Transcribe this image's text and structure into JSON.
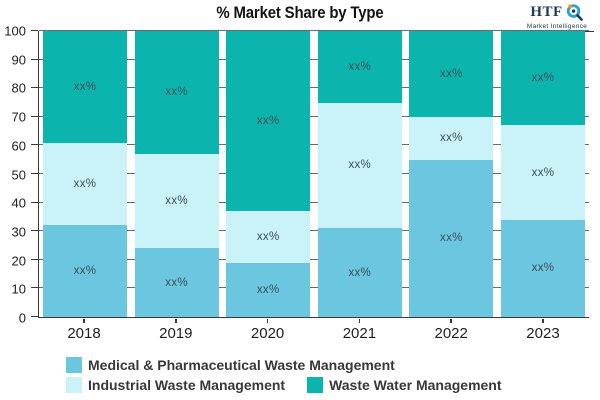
{
  "title": "% Market Share by Type",
  "logo": {
    "name": "HTF",
    "tagline": "Market Intelligence",
    "navy": "#1b3a5c",
    "blue": "#2d9fd6",
    "orange": "#f7941d"
  },
  "chart_data": {
    "type": "bar",
    "stacked": true,
    "title": "% Market Share by Type",
    "categories": [
      "2018",
      "2019",
      "2020",
      "2021",
      "2022",
      "2023"
    ],
    "series": [
      {
        "name": "Medical & Pharmaceutical Waste Management",
        "color": "#6BC6DF",
        "values": [
          32,
          24,
          19,
          31,
          55,
          34
        ]
      },
      {
        "name": "Industrial Waste Management",
        "color": "#C9F3F8",
        "values": [
          29,
          33,
          18,
          44,
          15,
          33
        ]
      },
      {
        "name": "Waste Water Management",
        "color": "#0CB4AE",
        "values": [
          39,
          43,
          63,
          25,
          30,
          33
        ]
      }
    ],
    "segment_label": "xx%",
    "xlabel": "",
    "ylabel": "",
    "ylim": [
      0,
      100
    ],
    "yticks": [
      0,
      10,
      20,
      30,
      40,
      50,
      60,
      70,
      80,
      90,
      100
    ],
    "grid": true,
    "legend_position": "bottom",
    "legend_rows": [
      [
        0
      ],
      [
        1,
        2
      ]
    ]
  }
}
